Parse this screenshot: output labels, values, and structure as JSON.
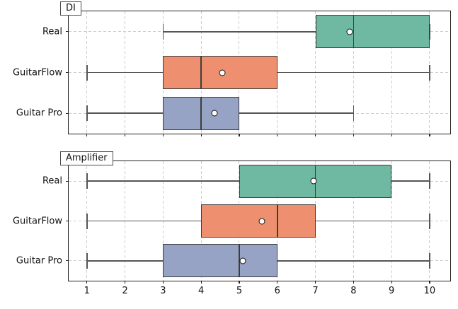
{
  "figure": {
    "background": "#ffffff",
    "font_color": "#111111"
  },
  "styles": {
    "box_edge": "#3d3d3d",
    "median_color": "#3d3d3d",
    "whisker_color": "#555555",
    "grid_color": "#cdcdcd",
    "spine_color": "#222222",
    "mean_marker_fill": "#ffffff",
    "mean_marker_edge": "#111111",
    "series_colors": {
      "real": "#6fb8a2",
      "guitarflow": "#ee9070",
      "guitar_pro": "#97a3c5"
    }
  },
  "chart_data": [
    {
      "type": "boxplot",
      "orientation": "horizontal",
      "title": "DI",
      "xlim": [
        0.52,
        10.54
      ],
      "xticks": [
        1,
        2,
        3,
        4,
        5,
        6,
        7,
        8,
        9,
        10
      ],
      "grid": "dashed, vertical at each x tick and horizontal at each category",
      "legend_position": "none",
      "categories": [
        "Real",
        "GuitarFlow",
        "Guitar Pro"
      ],
      "series": [
        {
          "category": "Real",
          "color": "#6fb8a2",
          "whisker_low": 3,
          "q1": 7,
          "median": 8,
          "q3": 10,
          "whisker_high": 10,
          "mean": 7.9
        },
        {
          "category": "GuitarFlow",
          "color": "#ee9070",
          "whisker_low": 1,
          "q1": 3,
          "median": 4,
          "q3": 6,
          "whisker_high": 10,
          "mean": 4.55
        },
        {
          "category": "Guitar Pro",
          "color": "#97a3c5",
          "whisker_low": 1,
          "q1": 3,
          "median": 4,
          "q3": 5,
          "whisker_high": 8,
          "mean": 4.35
        }
      ]
    },
    {
      "type": "boxplot",
      "orientation": "horizontal",
      "title": "Amplifier",
      "xlim": [
        0.52,
        10.54
      ],
      "xticks": [
        1,
        2,
        3,
        4,
        5,
        6,
        7,
        8,
        9,
        10
      ],
      "grid": "dashed, vertical at each x tick and horizontal at each category",
      "legend_position": "none",
      "categories": [
        "Real",
        "GuitarFlow",
        "Guitar Pro"
      ],
      "series": [
        {
          "category": "Real",
          "color": "#6fb8a2",
          "whisker_low": 1,
          "q1": 5,
          "median": 7,
          "q3": 9,
          "whisker_high": 10,
          "mean": 6.95
        },
        {
          "category": "GuitarFlow",
          "color": "#ee9070",
          "whisker_low": 1,
          "q1": 4,
          "median": 6,
          "q3": 7,
          "whisker_high": 10,
          "mean": 5.6
        },
        {
          "category": "Guitar Pro",
          "color": "#97a3c5",
          "whisker_low": 1,
          "q1": 3,
          "median": 5,
          "q3": 6,
          "whisker_high": 10,
          "mean": 5.1
        }
      ]
    }
  ]
}
